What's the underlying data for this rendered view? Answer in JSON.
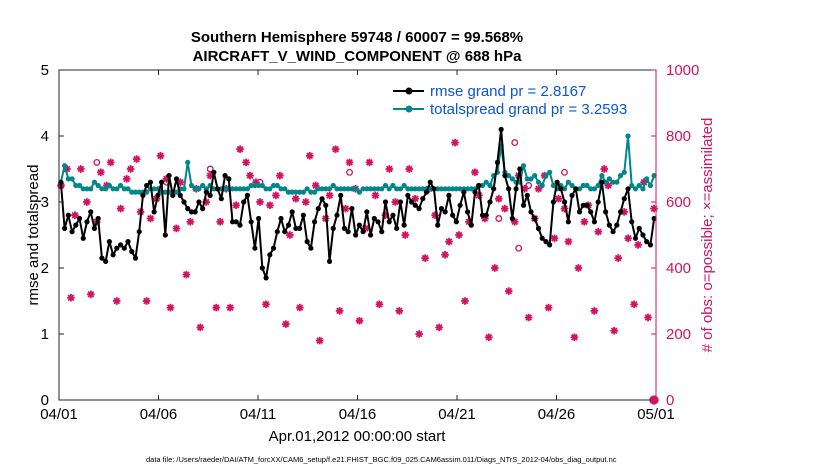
{
  "chart_data": {
    "type": "line",
    "title_lines": [
      "Southern Hemisphere 59748 / 60007 = 99.568%",
      "AIRCRAFT_V_WIND_COMPONENT @ 688 hPa"
    ],
    "xlabel": "Apr.01,2012 00:00:00 start",
    "ylabel_left": "rmse and totalspread",
    "ylabel_right": "# of obs: o=possible; ×=assimilated",
    "footnote": "data file: /Users/raeder/DAI/ATM_forcXX/CAM6_setup/f.e21.FHIST_BGC.f09_025.CAM6assim.011/Diags_NTrS_2012-04/obs_diag_output.nc",
    "xlim": [
      0,
      30
    ],
    "x_ticks": [
      0,
      5,
      10,
      15,
      20,
      25,
      30
    ],
    "x_tick_labels": [
      "04/01",
      "04/06",
      "04/11",
      "04/16",
      "04/21",
      "04/26",
      "05/01"
    ],
    "ylim_left": [
      0,
      5
    ],
    "y_ticks_left": [
      0,
      1,
      2,
      3,
      4,
      5
    ],
    "ylim_right": [
      0,
      1000
    ],
    "y_ticks_right": [
      0,
      200,
      400,
      600,
      800,
      1000
    ],
    "colors": {
      "rmse": "#000000",
      "spread": "#00868b",
      "obs": "#d3135f",
      "right_axis": "#d3135f",
      "legend_text": "#0a55d8"
    },
    "series": [
      {
        "name": "rmse grand pr = 2.8167",
        "axis": "left",
        "values": [
          3.3,
          2.6,
          2.8,
          2.55,
          2.65,
          2.75,
          2.45,
          2.7,
          2.85,
          2.6,
          2.75,
          2.15,
          2.1,
          2.4,
          2.2,
          2.3,
          2.35,
          2.3,
          2.4,
          2.25,
          2.15,
          2.55,
          3.1,
          3.25,
          3.3,
          2.85,
          3.1,
          3.3,
          2.5,
          3.4,
          3.1,
          3.35,
          3.1,
          3.0,
          2.9,
          2.85,
          2.85,
          3.0,
          2.9,
          3.15,
          3.1,
          3.45,
          3.2,
          3.05,
          3.4,
          3.35,
          2.7,
          2.7,
          2.65,
          3.0,
          3.1,
          2.7,
          2.3,
          2.75,
          2.0,
          1.85,
          2.2,
          2.3,
          2.55,
          2.75,
          2.55,
          2.65,
          2.85,
          2.6,
          2.6,
          2.8,
          2.4,
          2.3,
          2.7,
          2.9,
          3.05,
          2.95,
          2.1,
          2.6,
          2.8,
          3.1,
          2.6,
          2.55,
          2.9,
          2.5,
          2.65,
          2.55,
          2.85,
          2.5,
          2.75,
          2.7,
          2.55,
          3.0,
          2.7,
          2.8,
          2.6,
          3.0,
          2.65,
          3.1,
          3.0,
          2.95,
          2.9,
          3.05,
          3.15,
          3.3,
          3.2,
          2.65,
          2.9,
          2.85,
          3.1,
          2.8,
          2.7,
          2.95,
          3.15,
          2.85,
          2.65,
          3.15,
          3.25,
          2.8,
          2.8,
          3.0,
          3.2,
          3.6,
          4.1,
          3.4,
          3.2,
          2.75,
          3.2,
          3.5,
          2.95,
          3.1,
          2.85,
          2.75,
          2.6,
          2.45,
          2.4,
          2.35,
          3.0,
          3.3,
          3.2,
          3.0,
          2.7,
          3.1,
          3.2,
          2.85,
          2.95,
          2.95,
          2.85,
          2.7,
          3.0,
          3.3,
          2.85,
          2.65,
          2.55,
          2.65,
          2.85,
          3.05,
          3.2,
          2.7,
          2.45,
          2.6,
          2.5,
          2.4,
          2.35,
          2.75
        ],
        "marker": "dot"
      },
      {
        "name": "totalspread grand pr = 3.2593",
        "axis": "left",
        "values": [
          3.3,
          3.55,
          3.35,
          3.35,
          3.25,
          3.25,
          3.2,
          3.2,
          3.2,
          3.3,
          3.25,
          3.2,
          3.2,
          3.25,
          3.2,
          3.2,
          3.25,
          3.2,
          3.2,
          3.15,
          3.15,
          3.15,
          3.15,
          3.15,
          3.2,
          3.2,
          3.2,
          3.15,
          3.15,
          3.15,
          3.15,
          3.15,
          3.2,
          3.2,
          3.6,
          3.25,
          3.2,
          3.2,
          3.25,
          3.2,
          3.25,
          3.2,
          3.2,
          3.2,
          3.2,
          3.2,
          3.2,
          3.2,
          3.2,
          3.2,
          3.2,
          3.25,
          3.25,
          3.25,
          3.25,
          3.2,
          3.2,
          3.25,
          3.25,
          3.2,
          3.2,
          3.15,
          3.15,
          3.15,
          3.15,
          3.15,
          3.2,
          3.15,
          3.15,
          3.2,
          3.2,
          3.2,
          3.2,
          3.25,
          3.2,
          3.2,
          3.2,
          3.2,
          3.2,
          3.2,
          3.15,
          3.2,
          3.2,
          3.2,
          3.2,
          3.2,
          3.2,
          3.25,
          3.2,
          3.25,
          3.2,
          3.2,
          3.25,
          3.2,
          3.2,
          3.2,
          3.2,
          3.2,
          3.2,
          3.2,
          3.2,
          3.2,
          3.2,
          3.2,
          3.2,
          3.2,
          3.2,
          3.2,
          3.2,
          3.2,
          3.2,
          3.2,
          3.25,
          3.25,
          3.3,
          3.25,
          3.4,
          3.45,
          3.85,
          3.45,
          3.4,
          3.35,
          3.3,
          3.3,
          3.55,
          3.35,
          3.35,
          3.4,
          3.3,
          3.25,
          3.4,
          3.45,
          3.25,
          3.2,
          3.25,
          3.2,
          3.3,
          3.25,
          3.2,
          3.2,
          3.25,
          3.25,
          3.2,
          3.2,
          3.25,
          3.4,
          3.3,
          3.35,
          3.3,
          3.3,
          3.4,
          3.45,
          4.0,
          3.25,
          3.2,
          3.25,
          3.2,
          3.35,
          3.25,
          3.4
        ],
        "marker": "dot"
      },
      {
        "name": "obs assimilated",
        "axis": "right",
        "x": [
          0.1,
          0.4,
          0.6,
          0.8,
          1.1,
          1.4,
          1.6,
          1.9,
          2.1,
          2.4,
          2.6,
          2.9,
          3.1,
          3.4,
          3.6,
          3.9,
          4.1,
          4.4,
          4.6,
          4.9,
          5.1,
          5.4,
          5.6,
          5.9,
          6.1,
          6.4,
          6.6,
          6.9,
          7.1,
          7.4,
          7.6,
          7.9,
          8.1,
          8.4,
          8.6,
          8.9,
          9.1,
          9.4,
          9.6,
          9.9,
          10.1,
          10.4,
          10.6,
          10.9,
          11.1,
          11.4,
          11.6,
          11.9,
          12.1,
          12.4,
          12.6,
          12.9,
          13.1,
          13.4,
          13.6,
          13.9,
          14.1,
          14.4,
          14.6,
          14.9,
          15.1,
          15.4,
          15.6,
          15.9,
          16.1,
          16.4,
          16.6,
          16.9,
          17.1,
          17.4,
          17.6,
          17.9,
          18.1,
          18.4,
          18.6,
          18.9,
          19.1,
          19.4,
          19.6,
          19.9,
          20.1,
          20.4,
          20.6,
          20.9,
          21.1,
          21.4,
          21.6,
          21.9,
          22.1,
          22.4,
          22.6,
          22.9,
          23.1,
          23.4,
          23.6,
          23.9,
          24.1,
          24.4,
          24.6,
          24.9,
          25.1,
          25.4,
          25.6,
          25.9,
          26.1,
          26.4,
          26.6,
          26.9,
          27.1,
          27.4,
          27.6,
          27.9,
          28.1,
          28.4,
          28.6,
          28.9,
          29.1,
          29.4,
          29.6,
          29.9
        ],
        "values": [
          650,
          700,
          310,
          560,
          700,
          600,
          320,
          540,
          690,
          650,
          720,
          300,
          580,
          670,
          700,
          730,
          570,
          300,
          550,
          610,
          740,
          670,
          280,
          520,
          660,
          380,
          540,
          640,
          220,
          600,
          680,
          280,
          540,
          640,
          280,
          590,
          760,
          720,
          680,
          660,
          600,
          290,
          590,
          620,
          680,
          230,
          500,
          610,
          280,
          600,
          740,
          650,
          180,
          550,
          620,
          760,
          270,
          580,
          720,
          640,
          240,
          520,
          720,
          620,
          290,
          560,
          700,
          600,
          270,
          500,
          700,
          610,
          200,
          430,
          640,
          560,
          220,
          440,
          480,
          780,
          500,
          300,
          540,
          690,
          620,
          550,
          190,
          400,
          610,
          580,
          330,
          540,
          680,
          640,
          250,
          550,
          640,
          680,
          280,
          490,
          610,
          580,
          480,
          190,
          400,
          540,
          590,
          270,
          510,
          700,
          650,
          210,
          430,
          570,
          490,
          290,
          470,
          660,
          250,
          580
        ],
        "marker": "star"
      },
      {
        "name": "obs possible",
        "axis": "right",
        "x": [
          0.1,
          1.9,
          5.4,
          7.6,
          10.1,
          14.6,
          22.1,
          22.9,
          23.1,
          23.6,
          25.4,
          29.9
        ],
        "values": [
          650,
          720,
          660,
          700,
          660,
          690,
          550,
          780,
          460,
          650,
          690,
          0
        ],
        "marker": "circle"
      }
    ]
  }
}
